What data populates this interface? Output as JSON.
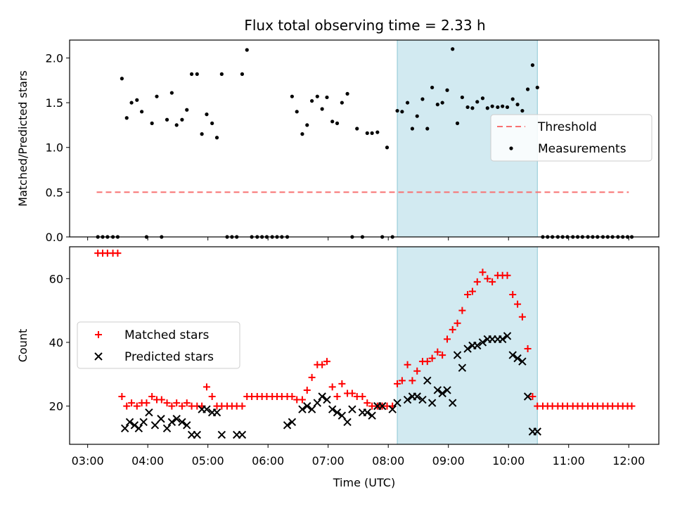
{
  "title": "Flux total observing time = 2.33 h",
  "chart_data": [
    {
      "type": "scatter",
      "ylabel": "Matched/Predicted stars",
      "ylim": [
        0,
        2.2
      ],
      "xlim": [
        2.7,
        12.5
      ],
      "yticks": [
        "0.0",
        "0.5",
        "1.0",
        "1.5",
        "2.0"
      ],
      "shaded_region": [
        8.15,
        10.48
      ],
      "threshold": {
        "name": "Threshold",
        "value": 0.5,
        "x_range": [
          3.15,
          12.0
        ],
        "color": "#f87171"
      },
      "legend": [
        "Threshold",
        "Measurements"
      ],
      "legend_position": "center-right",
      "series": [
        {
          "name": "Measurements",
          "color": "#000000",
          "x": [
            3.17,
            3.25,
            3.33,
            3.42,
            3.5,
            3.57,
            3.65,
            3.73,
            3.82,
            3.9,
            3.98,
            4.07,
            4.15,
            4.23,
            4.32,
            4.4,
            4.48,
            4.57,
            4.65,
            4.73,
            4.82,
            4.9,
            4.98,
            5.07,
            5.15,
            5.23,
            5.32,
            5.4,
            5.48,
            5.57,
            5.65,
            5.73,
            5.82,
            5.9,
            5.98,
            6.07,
            6.15,
            6.23,
            6.32,
            6.4,
            6.48,
            6.57,
            6.65,
            6.73,
            6.82,
            6.9,
            6.98,
            7.07,
            7.15,
            7.23,
            7.32,
            7.4,
            7.48,
            7.57,
            7.65,
            7.73,
            7.82,
            7.9,
            7.98,
            8.07,
            8.15,
            8.23,
            8.32,
            8.4,
            8.48,
            8.57,
            8.65,
            8.73,
            8.82,
            8.9,
            8.98,
            9.07,
            9.15,
            9.23,
            9.32,
            9.4,
            9.48,
            9.57,
            9.65,
            9.73,
            9.82,
            9.9,
            9.98,
            10.07,
            10.15,
            10.23,
            10.32,
            10.4,
            10.48,
            10.57,
            10.65,
            10.73,
            10.82,
            10.9,
            10.98,
            11.07,
            11.15,
            11.23,
            11.32,
            11.4,
            11.48,
            11.57,
            11.65,
            11.73,
            11.82,
            11.9,
            11.98,
            12.05
          ],
          "y": [
            0,
            0,
            0,
            0,
            0,
            1.77,
            1.33,
            1.5,
            1.53,
            1.4,
            0,
            1.27,
            1.57,
            0,
            1.31,
            1.61,
            1.25,
            1.31,
            1.42,
            1.82,
            1.82,
            1.15,
            1.37,
            1.27,
            1.11,
            1.82,
            0,
            0,
            0,
            1.82,
            2.09,
            0,
            0,
            0,
            0,
            0,
            0,
            0,
            0,
            1.57,
            1.4,
            1.15,
            1.25,
            1.52,
            1.57,
            1.43,
            1.56,
            1.29,
            1.27,
            1.5,
            1.6,
            0,
            1.21,
            0,
            1.16,
            1.16,
            1.17,
            0,
            1.0,
            0,
            1.41,
            1.4,
            1.5,
            1.21,
            1.35,
            1.54,
            1.21,
            1.67,
            1.48,
            1.5,
            1.64,
            2.1,
            1.27,
            1.56,
            1.45,
            1.44,
            1.51,
            1.55,
            1.44,
            1.46,
            1.45,
            1.46,
            1.45,
            1.54,
            1.48,
            1.41,
            1.65,
            1.92,
            1.67,
            0,
            0,
            0,
            0,
            0,
            0,
            0,
            0,
            0,
            0,
            0,
            0,
            0,
            0,
            0,
            0,
            0,
            0,
            0
          ]
        }
      ]
    },
    {
      "type": "scatter",
      "xlabel": "Time (UTC)",
      "ylabel": "Count",
      "ylim": [
        8,
        70
      ],
      "xlim": [
        2.7,
        12.5
      ],
      "yticks": [
        "20",
        "40",
        "60"
      ],
      "xticks": [
        "03:00",
        "04:00",
        "05:00",
        "06:00",
        "07:00",
        "08:00",
        "09:00",
        "10:00",
        "11:00",
        "12:00"
      ],
      "shaded_region": [
        8.15,
        10.48
      ],
      "legend": [
        "Matched stars",
        "Predicted stars"
      ],
      "legend_position": "center-left",
      "series": [
        {
          "name": "Matched stars",
          "marker": "+",
          "color": "#ff0000",
          "x": [
            3.17,
            3.25,
            3.33,
            3.42,
            3.5,
            3.57,
            3.65,
            3.73,
            3.82,
            3.9,
            3.98,
            4.07,
            4.15,
            4.23,
            4.32,
            4.4,
            4.48,
            4.57,
            4.65,
            4.73,
            4.82,
            4.9,
            4.98,
            5.07,
            5.15,
            5.23,
            5.32,
            5.4,
            5.48,
            5.57,
            5.65,
            5.73,
            5.82,
            5.9,
            5.98,
            6.07,
            6.15,
            6.23,
            6.32,
            6.4,
            6.48,
            6.57,
            6.65,
            6.73,
            6.82,
            6.9,
            6.98,
            7.07,
            7.15,
            7.23,
            7.32,
            7.4,
            7.48,
            7.57,
            7.65,
            7.73,
            7.82,
            7.9,
            7.98,
            8.07,
            8.15,
            8.23,
            8.32,
            8.4,
            8.48,
            8.57,
            8.65,
            8.73,
            8.82,
            8.9,
            8.98,
            9.07,
            9.15,
            9.23,
            9.32,
            9.4,
            9.48,
            9.57,
            9.65,
            9.73,
            9.82,
            9.9,
            9.98,
            10.07,
            10.15,
            10.23,
            10.32,
            10.4,
            10.48,
            10.57,
            10.65,
            10.73,
            10.82,
            10.9,
            10.98,
            11.07,
            11.15,
            11.23,
            11.32,
            11.4,
            11.48,
            11.57,
            11.65,
            11.73,
            11.82,
            11.9,
            11.98,
            12.05
          ],
          "y": [
            68,
            68,
            68,
            68,
            68,
            23,
            20,
            21,
            20,
            21,
            21,
            23,
            22,
            22,
            21,
            20,
            21,
            20,
            21,
            20,
            20,
            20,
            26,
            23,
            20,
            20,
            20,
            20,
            20,
            20,
            23,
            23,
            23,
            23,
            23,
            23,
            23,
            23,
            23,
            23,
            22,
            22,
            25,
            29,
            33,
            33,
            34,
            26,
            23,
            27,
            24,
            24,
            23,
            23,
            21,
            20,
            20,
            20,
            20,
            20,
            27,
            28,
            33,
            28,
            31,
            34,
            34,
            35,
            37,
            36,
            41,
            44,
            46,
            50,
            55,
            56,
            59,
            62,
            60,
            59,
            61,
            61,
            61,
            55,
            52,
            48,
            38,
            23,
            20,
            20,
            20,
            20,
            20,
            20,
            20,
            20,
            20,
            20,
            20,
            20,
            20,
            20,
            20,
            20,
            20,
            20,
            20,
            20
          ]
        },
        {
          "name": "Predicted stars",
          "marker": "x",
          "color": "#000000",
          "x": [
            3.62,
            3.7,
            3.78,
            3.85,
            3.93,
            4.02,
            4.12,
            4.22,
            4.32,
            4.4,
            4.48,
            4.57,
            4.65,
            4.73,
            4.82,
            4.9,
            4.98,
            5.07,
            5.15,
            5.23,
            5.32,
            5.4,
            5.48,
            5.57,
            5.65,
            5.73,
            5.82,
            5.9,
            5.98,
            6.07,
            6.15,
            6.23,
            6.32,
            6.4,
            6.48,
            6.57,
            6.65,
            6.73,
            6.82,
            6.9,
            6.98,
            7.07,
            7.15,
            7.23,
            7.32,
            7.4,
            7.48,
            7.57,
            7.65,
            7.73,
            7.82,
            7.9,
            7.98,
            8.07,
            8.15,
            8.23,
            8.32,
            8.4,
            8.48,
            8.57,
            8.65,
            8.73,
            8.82,
            8.9,
            8.98,
            9.07,
            9.15,
            9.23,
            9.32,
            9.4,
            9.48,
            9.57,
            9.65,
            9.73,
            9.82,
            9.9,
            9.98,
            10.07,
            10.15,
            10.23,
            10.32,
            10.4,
            10.48,
            10.57
          ],
          "y": [
            13,
            15,
            14,
            13,
            15,
            18,
            14,
            16,
            13,
            15,
            16,
            15,
            14,
            11,
            11,
            19,
            19,
            18,
            18,
            11,
            null,
            null,
            11,
            11,
            null,
            null,
            null,
            null,
            null,
            null,
            null,
            null,
            14,
            15,
            null,
            19,
            20,
            19,
            21,
            23,
            22,
            19,
            18,
            17,
            15,
            19,
            null,
            18,
            18,
            17,
            20,
            20,
            null,
            19,
            21,
            null,
            22,
            23,
            23,
            22,
            28,
            21,
            25,
            24,
            25,
            21,
            36,
            32,
            38,
            39,
            39,
            40,
            41,
            41,
            41,
            41,
            42,
            36,
            35,
            34,
            23,
            12,
            12,
            null
          ]
        }
      ]
    }
  ]
}
